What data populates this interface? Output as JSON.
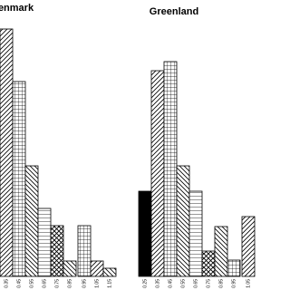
{
  "chart_data": [
    {
      "type": "bar",
      "title": "Denmark",
      "categories": [
        "0.35",
        "0.45",
        "0.55",
        "0.65",
        "0.75",
        "0.85",
        "0.95",
        "1.05",
        "1.15"
      ],
      "values": [
        273,
        215,
        122,
        75,
        56,
        17,
        56,
        17,
        9
      ],
      "patterns": [
        "diag",
        "grid",
        "back",
        "hlines",
        "cross",
        "back",
        "grid",
        "diag",
        "back"
      ],
      "ylim": [
        0,
        280
      ]
    },
    {
      "type": "bar",
      "title": "Greenland",
      "categories": [
        "0.25",
        "0.35",
        "0.45",
        "0.55",
        "0.65",
        "0.75",
        "0.85",
        "0.95",
        "1.05"
      ],
      "values": [
        94,
        227,
        237,
        122,
        94,
        28,
        55,
        18,
        66
      ],
      "patterns": [
        "solid",
        "diag",
        "grid",
        "back",
        "hlines",
        "cross",
        "back",
        "grid",
        "diag"
      ],
      "ylim": [
        0,
        280
      ]
    }
  ]
}
